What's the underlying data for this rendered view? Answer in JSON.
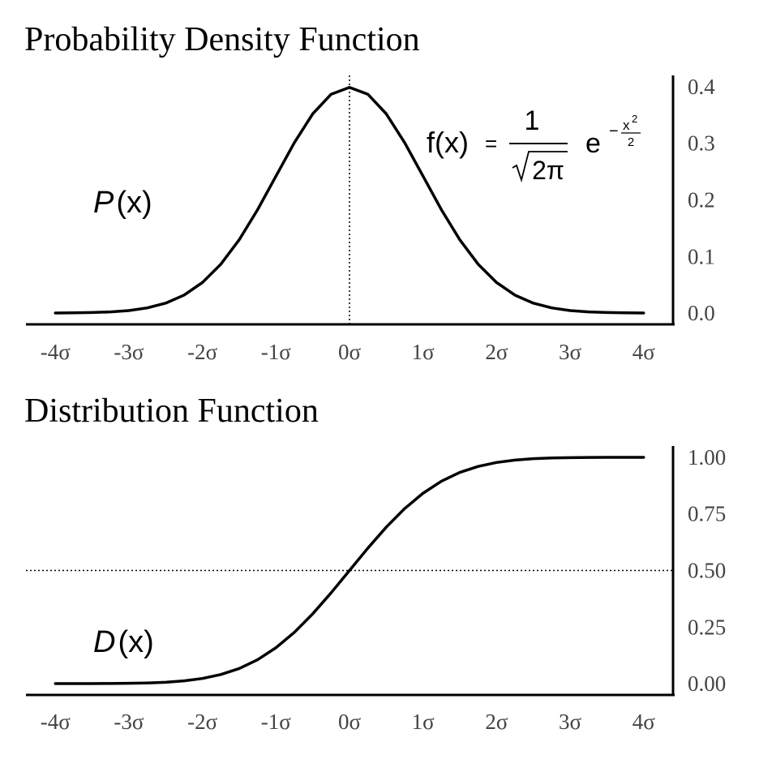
{
  "chart_data": [
    {
      "type": "line",
      "title": "Probability Density Function",
      "annotation_symbol": "P",
      "annotation_args": "(x)",
      "formula": {
        "lhs": "f(x)",
        "equals": "=",
        "numerator": "1",
        "radicand": "2π",
        "base": "e",
        "exp_sign": "−",
        "exp_num": "x",
        "exp_pow": "2",
        "exp_den": "2"
      },
      "x": [
        -4,
        -3.75,
        -3.5,
        -3.25,
        -3,
        -2.75,
        -2.5,
        -2.25,
        -2,
        -1.75,
        -1.5,
        -1.25,
        -1,
        -0.75,
        -0.5,
        -0.25,
        0,
        0.25,
        0.5,
        0.75,
        1,
        1.25,
        1.5,
        1.75,
        2,
        2.25,
        2.5,
        2.75,
        3,
        3.25,
        3.5,
        3.75,
        4
      ],
      "values": [
        0.0001,
        0.0004,
        0.0009,
        0.002,
        0.0044,
        0.0091,
        0.0175,
        0.0317,
        0.054,
        0.0863,
        0.1295,
        0.1826,
        0.242,
        0.3011,
        0.3521,
        0.3867,
        0.3989,
        0.3867,
        0.3521,
        0.3011,
        0.242,
        0.1826,
        0.1295,
        0.0863,
        0.054,
        0.0317,
        0.0175,
        0.0091,
        0.0044,
        0.002,
        0.0009,
        0.0004,
        0.0001
      ],
      "color": "#000000",
      "xlim": [
        -4.4,
        4.4
      ],
      "xticks": [
        {
          "value": -4,
          "label": "-4σ"
        },
        {
          "value": -3,
          "label": "-3σ"
        },
        {
          "value": -2,
          "label": "-2σ"
        },
        {
          "value": -1,
          "label": "-1σ"
        },
        {
          "value": 0,
          "label": "0σ"
        },
        {
          "value": 1,
          "label": "1σ"
        },
        {
          "value": 2,
          "label": "2σ"
        },
        {
          "value": 3,
          "label": "3σ"
        },
        {
          "value": 4,
          "label": "4σ"
        }
      ],
      "ylim": [
        -0.02,
        0.42
      ],
      "yticks": [
        {
          "value": 0,
          "label": "0.0"
        },
        0.1,
        0.2,
        0.3,
        0.4
      ],
      "vline": 0
    },
    {
      "type": "line",
      "title": "Distribution Function",
      "annotation_symbol": "D",
      "annotation_args": "(x)",
      "x": [
        -4,
        -3.75,
        -3.5,
        -3.25,
        -3,
        -2.75,
        -2.5,
        -2.25,
        -2,
        -1.75,
        -1.5,
        -1.25,
        -1,
        -0.75,
        -0.5,
        -0.25,
        0,
        0.25,
        0.5,
        0.75,
        1,
        1.25,
        1.5,
        1.75,
        2,
        2.25,
        2.5,
        2.75,
        3,
        3.25,
        3.5,
        3.75,
        4
      ],
      "values": [
        0,
        0.0001,
        0.0002,
        0.0006,
        0.0013,
        0.003,
        0.0062,
        0.0122,
        0.0228,
        0.0401,
        0.0668,
        0.1056,
        0.1587,
        0.2266,
        0.3085,
        0.4013,
        0.5,
        0.5987,
        0.6915,
        0.7734,
        0.8413,
        0.8944,
        0.9332,
        0.9599,
        0.9772,
        0.9878,
        0.9938,
        0.997,
        0.9987,
        0.9994,
        0.9998,
        0.9999,
        1
      ],
      "color": "#000000",
      "xlim": [
        -4.4,
        4.4
      ],
      "xticks": [
        {
          "value": -4,
          "label": "-4σ"
        },
        {
          "value": -3,
          "label": "-3σ"
        },
        {
          "value": -2,
          "label": "-2σ"
        },
        {
          "value": -1,
          "label": "-1σ"
        },
        {
          "value": 0,
          "label": "0σ"
        },
        {
          "value": 1,
          "label": "1σ"
        },
        {
          "value": 2,
          "label": "2σ"
        },
        {
          "value": 3,
          "label": "3σ"
        },
        {
          "value": 4,
          "label": "4σ"
        }
      ],
      "ylim": [
        -0.05,
        1.05
      ],
      "yticks": [
        {
          "value": 1,
          "label": "1.00"
        },
        0.75,
        {
          "value": 0.5,
          "label": "0.50"
        },
        0.25,
        {
          "value": 0,
          "label": "0.00"
        }
      ],
      "hline": 0.5
    }
  ]
}
